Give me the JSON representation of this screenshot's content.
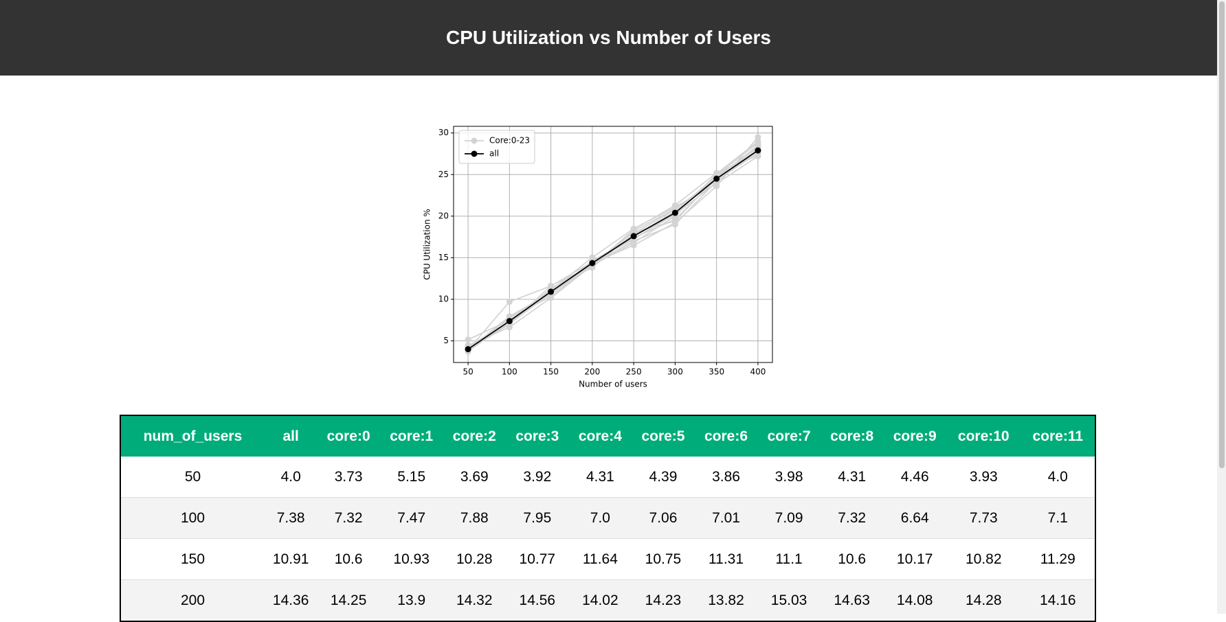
{
  "header": {
    "title": "CPU Utilization vs Number of Users"
  },
  "chart_data": {
    "type": "line",
    "x": [
      50,
      100,
      150,
      200,
      250,
      300,
      350,
      400
    ],
    "xlabel": "Number of users",
    "ylabel": "CPU Utilization %",
    "xlim": [
      32.5,
      417.5
    ],
    "xticks": [
      50,
      100,
      150,
      200,
      250,
      300,
      350,
      400
    ],
    "ylim": [
      2.4,
      30.8
    ],
    "yticks": [
      5,
      10,
      15,
      20,
      25,
      30
    ],
    "grid": true,
    "legend": "upper left",
    "series": [
      {
        "name": "Core:0-23",
        "color": "#d3d3d3",
        "values": [
          3.73,
          7.32,
          10.6,
          14.25,
          17.8,
          20.2,
          24.8,
          28.2
        ]
      },
      {
        "color": "#d3d3d3",
        "values": [
          5.15,
          7.47,
          10.93,
          13.9,
          18.2,
          20.9,
          24.4,
          27.6
        ]
      },
      {
        "color": "#d3d3d3",
        "values": [
          3.69,
          7.88,
          10.28,
          14.32,
          16.5,
          19.2,
          23.6,
          29.5
        ]
      },
      {
        "color": "#d3d3d3",
        "values": [
          3.92,
          7.95,
          10.77,
          14.56,
          17.2,
          20.5,
          24.9,
          28.8
        ]
      },
      {
        "color": "#d3d3d3",
        "values": [
          4.31,
          7.0,
          11.64,
          14.02,
          18.4,
          21.3,
          25.2,
          27.3
        ]
      },
      {
        "color": "#d3d3d3",
        "values": [
          4.39,
          7.06,
          10.75,
          14.23,
          17.0,
          19.0,
          24.2,
          27.9
        ]
      },
      {
        "color": "#d3d3d3",
        "values": [
          3.86,
          7.01,
          11.31,
          13.82,
          17.9,
          20.8,
          24.6,
          28.5
        ]
      },
      {
        "color": "#d3d3d3",
        "values": [
          3.98,
          7.09,
          11.1,
          15.03,
          18.5,
          21.1,
          23.9,
          27.2
        ]
      },
      {
        "color": "#d3d3d3",
        "values": [
          4.31,
          7.32,
          10.6,
          14.63,
          17.4,
          19.6,
          24.5,
          28.0
        ]
      },
      {
        "color": "#d3d3d3",
        "values": [
          4.46,
          6.64,
          10.17,
          14.08,
          16.8,
          20.0,
          25.1,
          29.0
        ]
      },
      {
        "color": "#d3d3d3",
        "values": [
          3.93,
          7.73,
          10.82,
          14.28,
          17.6,
          20.6,
          24.3,
          27.6
        ]
      },
      {
        "color": "#d3d3d3",
        "values": [
          4.0,
          7.1,
          11.29,
          14.16,
          18.1,
          19.4,
          24.7,
          28.3
        ]
      },
      {
        "color": "#d3d3d3",
        "values": [
          3.9,
          9.7,
          11.6,
          14.5,
          17.3,
          20.2,
          24.0,
          28.6
        ]
      },
      {
        "name": "all",
        "color": "#000000",
        "values": [
          4.0,
          7.38,
          10.91,
          14.36,
          17.6,
          20.4,
          24.5,
          27.9
        ]
      }
    ]
  },
  "table": {
    "columns": [
      "num_of_users",
      "all",
      "core:0",
      "core:1",
      "core:2",
      "core:3",
      "core:4",
      "core:5",
      "core:6",
      "core:7",
      "core:8",
      "core:9",
      "core:10",
      "core:11"
    ],
    "rows": [
      [
        "50",
        "4.0",
        "3.73",
        "5.15",
        "3.69",
        "3.92",
        "4.31",
        "4.39",
        "3.86",
        "3.98",
        "4.31",
        "4.46",
        "3.93",
        "4.0"
      ],
      [
        "100",
        "7.38",
        "7.32",
        "7.47",
        "7.88",
        "7.95",
        "7.0",
        "7.06",
        "7.01",
        "7.09",
        "7.32",
        "6.64",
        "7.73",
        "7.1"
      ],
      [
        "150",
        "10.91",
        "10.6",
        "10.93",
        "10.28",
        "10.77",
        "11.64",
        "10.75",
        "11.31",
        "11.1",
        "10.6",
        "10.17",
        "10.82",
        "11.29"
      ],
      [
        "200",
        "14.36",
        "14.25",
        "13.9",
        "14.32",
        "14.56",
        "14.02",
        "14.23",
        "13.82",
        "15.03",
        "14.63",
        "14.08",
        "14.28",
        "14.16"
      ]
    ]
  }
}
